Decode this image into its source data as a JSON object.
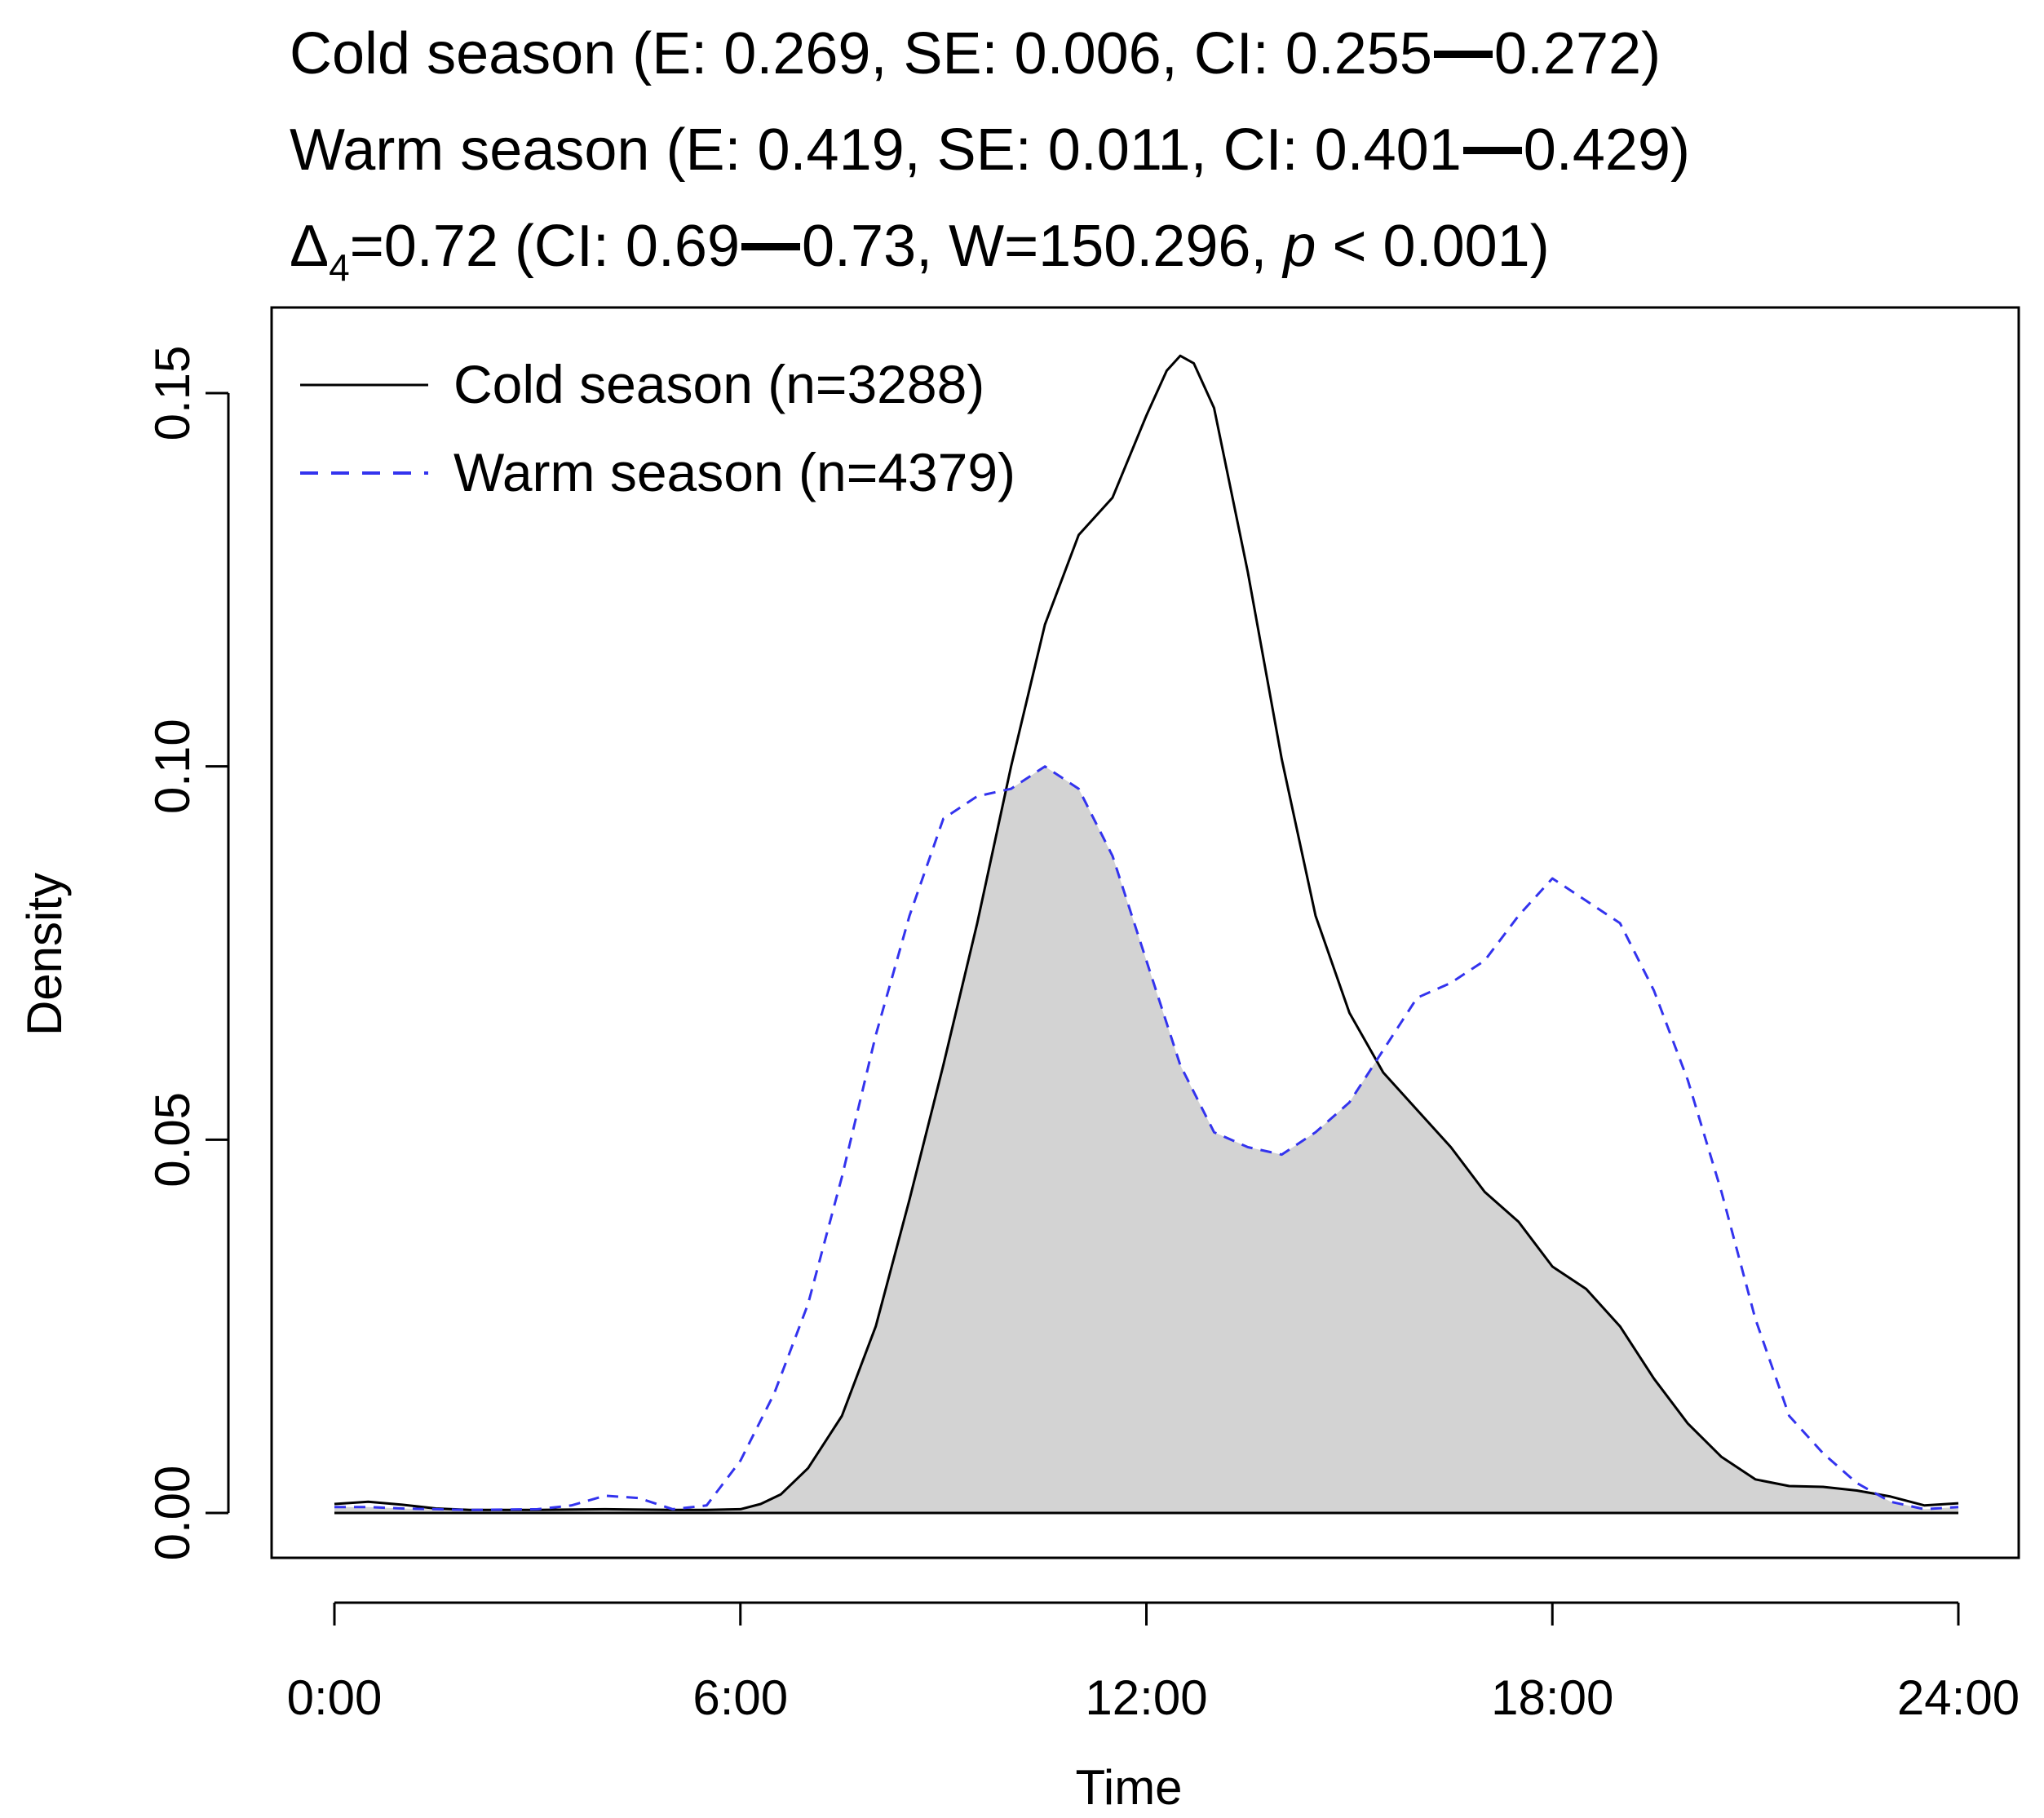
{
  "title": {
    "cold": {
      "label": "Cold season",
      "stats": "(E: 0.269, SE: 0.006, CI: 0.255",
      "ci_high": "0.272)"
    },
    "warm": {
      "label": "Warm season",
      "stats": "(E: 0.419, SE: 0.011, CI: 0.401",
      "ci_high": "0.429)"
    },
    "overlap": {
      "symbol": "Δ",
      "subscript": "4",
      "value": "=0.72 (CI: 0.69",
      "rest": "0.73, W=150.296, ",
      "p": "p",
      "p_rest": " < 0.001)"
    }
  },
  "chart_data": {
    "type": "line",
    "xlabel": "Time",
    "ylabel": "Density",
    "xlim": [
      0,
      24
    ],
    "ylim": [
      0,
      0.16
    ],
    "x_ticks": [
      0,
      6,
      12,
      18,
      24
    ],
    "x_tick_labels": [
      "0:00",
      "6:00",
      "12:00",
      "18:00",
      "24:00"
    ],
    "y_ticks": [
      0,
      0.05,
      0.1,
      0.15
    ],
    "y_tick_labels": [
      "0.00",
      "0.05",
      "0.10",
      "0.15"
    ],
    "legend": {
      "position": "top-left",
      "entries": [
        "Cold season (n=3288)",
        "Warm season (n=4379)"
      ]
    },
    "overlap_fill": "#d3d3d3",
    "series": [
      {
        "name": "Cold season (n=3288)",
        "color": "#000000",
        "dash": "solid",
        "x": [
          0,
          0.5,
          1,
          1.5,
          2,
          3,
          4,
          5,
          5.5,
          6,
          6.3,
          6.6,
          7,
          7.5,
          8,
          8.5,
          9,
          9.5,
          10,
          10.5,
          11,
          11.5,
          12,
          12.3,
          12.5,
          12.7,
          13,
          13.5,
          14,
          14.5,
          15,
          15.5,
          16,
          16.5,
          17,
          17.5,
          18,
          18.5,
          19,
          19.5,
          20,
          20.5,
          21,
          21.5,
          22,
          22.5,
          23,
          23.5,
          24
        ],
        "values": [
          0.0012,
          0.0015,
          0.0011,
          0.0006,
          0.0004,
          0.0004,
          0.0005,
          0.0004,
          0.0004,
          0.0005,
          0.0012,
          0.0025,
          0.006,
          0.013,
          0.025,
          0.042,
          0.06,
          0.079,
          0.1,
          0.119,
          0.131,
          0.136,
          0.147,
          0.153,
          0.155,
          0.154,
          0.148,
          0.126,
          0.101,
          0.08,
          0.067,
          0.059,
          0.054,
          0.049,
          0.043,
          0.039,
          0.033,
          0.03,
          0.025,
          0.018,
          0.012,
          0.0075,
          0.0045,
          0.0036,
          0.0035,
          0.003,
          0.0022,
          0.001,
          0.0013
        ]
      },
      {
        "name": "Warm season (n=4379)",
        "color": "#3333ee",
        "dash": "dashed",
        "x": [
          0,
          0.5,
          1,
          1.5,
          2,
          3,
          3.5,
          4,
          4.5,
          5,
          5.5,
          6,
          6.5,
          7,
          7.5,
          8,
          8.5,
          9,
          9.5,
          10,
          10.5,
          11,
          11.5,
          12,
          12.5,
          13,
          13.5,
          14,
          14.5,
          15,
          15.5,
          16,
          16.5,
          17,
          17.5,
          18,
          18.5,
          19,
          19.5,
          20,
          20.5,
          21,
          21.5,
          22,
          22.5,
          23,
          23.5,
          24
        ],
        "values": [
          0.0008,
          0.0008,
          0.0006,
          0.0005,
          0.0004,
          0.0005,
          0.001,
          0.0023,
          0.002,
          0.0005,
          0.001,
          0.007,
          0.016,
          0.028,
          0.045,
          0.064,
          0.08,
          0.093,
          0.096,
          0.097,
          0.1,
          0.097,
          0.088,
          0.074,
          0.06,
          0.051,
          0.049,
          0.048,
          0.051,
          0.055,
          0.062,
          0.069,
          0.071,
          0.074,
          0.08,
          0.085,
          0.082,
          0.079,
          0.07,
          0.058,
          0.043,
          0.026,
          0.013,
          0.008,
          0.004,
          0.0015,
          0.0005,
          0.0008
        ]
      }
    ]
  }
}
